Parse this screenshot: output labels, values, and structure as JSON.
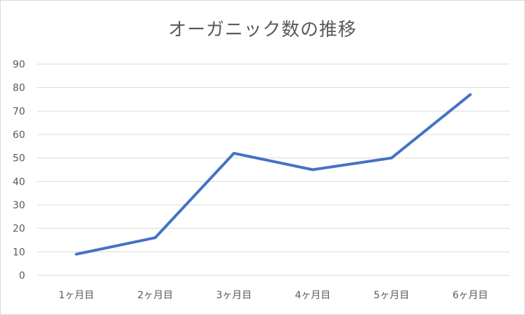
{
  "chart_data": {
    "type": "line",
    "title": "オーガニック数の推移",
    "xlabel": "",
    "ylabel": "",
    "categories": [
      "1ヶ月目",
      "2ヶ月目",
      "3ヶ月目",
      "4ヶ月目",
      "5ヶ月目",
      "6ヶ月目"
    ],
    "series": [
      {
        "values": [
          9,
          16,
          52,
          45,
          50,
          77
        ],
        "color": "#4472C4"
      }
    ],
    "ylim": [
      0,
      90
    ],
    "yticks": [
      0,
      10,
      20,
      30,
      40,
      50,
      60,
      70,
      80,
      90
    ],
    "grid": true,
    "legend": "none"
  },
  "colors": {
    "series_line": "#4472C4",
    "gridline": "#d9d9d9",
    "text": "#595959"
  }
}
